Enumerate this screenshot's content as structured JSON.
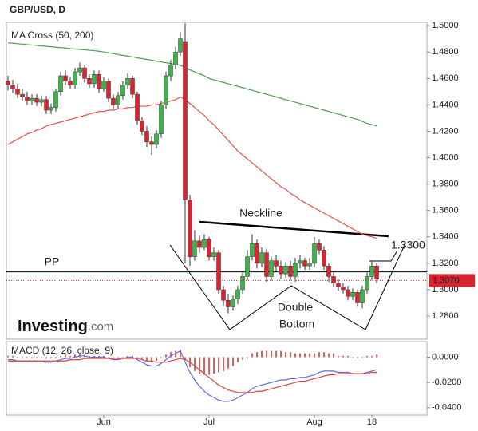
{
  "chart_data": [
    {
      "type": "candlestick",
      "title": "GBP/USD, D",
      "subtitle": "MA Cross (50, 200)",
      "categories": [
        null,
        null,
        null,
        null,
        null,
        null,
        null,
        null,
        null,
        null,
        null,
        null,
        null,
        null,
        null,
        null,
        null,
        null,
        null,
        null,
        "Jun",
        null,
        null,
        null,
        null,
        null,
        null,
        null,
        null,
        null,
        null,
        null,
        null,
        null,
        null,
        null,
        null,
        null,
        null,
        null,
        null,
        null,
        "Jul",
        null,
        null,
        null,
        null,
        null,
        null,
        null,
        null,
        null,
        null,
        null,
        null,
        null,
        null,
        null,
        null,
        null,
        null,
        null,
        null,
        null,
        "Aug",
        null,
        null,
        null,
        null,
        null,
        null,
        null,
        null,
        null,
        null,
        null,
        "18",
        null
      ],
      "open": [
        1.458,
        1.455,
        1.452,
        1.448,
        1.446,
        1.443,
        1.445,
        1.442,
        1.444,
        1.436,
        1.438,
        1.45,
        1.462,
        1.458,
        1.455,
        1.465,
        1.468,
        1.46,
        1.456,
        1.463,
        1.452,
        1.458,
        1.445,
        1.44,
        1.447,
        1.455,
        1.46,
        1.448,
        1.428,
        1.42,
        1.412,
        1.41,
        1.418,
        1.44,
        1.462,
        1.47,
        1.48,
        1.488,
        1.368,
        1.325,
        1.337,
        1.332,
        1.338,
        1.325,
        1.328,
        1.3,
        1.292,
        1.287,
        1.293,
        1.3,
        1.31,
        1.325,
        1.335,
        1.32,
        1.328,
        1.31,
        1.322,
        1.318,
        1.312,
        1.318,
        1.31,
        1.32,
        1.322,
        1.318,
        1.32,
        1.335,
        1.33,
        1.318,
        1.31,
        1.305,
        1.302,
        1.3,
        1.295,
        1.298,
        1.29,
        1.3,
        1.31,
        1.318
      ],
      "high": [
        1.462,
        1.459,
        1.456,
        1.452,
        1.45,
        1.448,
        1.448,
        1.447,
        1.447,
        1.441,
        1.452,
        1.465,
        1.466,
        1.461,
        1.468,
        1.472,
        1.47,
        1.463,
        1.466,
        1.466,
        1.461,
        1.46,
        1.448,
        1.45,
        1.458,
        1.464,
        1.462,
        1.45,
        1.431,
        1.424,
        1.416,
        1.421,
        1.443,
        1.465,
        1.474,
        1.484,
        1.495,
        1.502,
        1.372,
        1.345,
        1.341,
        1.342,
        1.34,
        1.332,
        1.33,
        1.303,
        1.297,
        1.296,
        1.303,
        1.313,
        1.33,
        1.342,
        1.338,
        1.332,
        1.331,
        1.325,
        1.326,
        1.322,
        1.321,
        1.322,
        1.324,
        1.326,
        1.324,
        1.324,
        1.34,
        1.338,
        1.333,
        1.32,
        1.313,
        1.308,
        1.305,
        1.303,
        1.301,
        1.3,
        1.303,
        1.313,
        1.322,
        1.32
      ],
      "low": [
        1.451,
        1.449,
        1.445,
        1.443,
        1.44,
        1.44,
        1.439,
        1.439,
        1.433,
        1.433,
        1.435,
        1.447,
        1.455,
        1.452,
        1.452,
        1.462,
        1.457,
        1.453,
        1.453,
        1.449,
        1.45,
        1.442,
        1.437,
        1.437,
        1.444,
        1.452,
        1.445,
        1.425,
        1.417,
        1.408,
        1.402,
        1.407,
        1.415,
        1.437,
        1.458,
        1.467,
        1.477,
        1.32,
        1.318,
        1.322,
        1.328,
        1.33,
        1.322,
        1.322,
        1.297,
        1.288,
        1.282,
        1.284,
        1.289,
        1.297,
        1.307,
        1.322,
        1.316,
        1.317,
        1.306,
        1.307,
        1.314,
        1.308,
        1.309,
        1.307,
        1.306,
        1.316,
        1.315,
        1.315,
        1.317,
        1.327,
        1.315,
        1.306,
        1.302,
        1.299,
        1.297,
        1.292,
        1.292,
        1.287,
        1.286,
        1.297,
        1.307,
        1.305
      ],
      "close": [
        1.455,
        1.452,
        1.448,
        1.446,
        1.443,
        1.445,
        1.442,
        1.444,
        1.436,
        1.438,
        1.45,
        1.462,
        1.458,
        1.455,
        1.465,
        1.468,
        1.46,
        1.456,
        1.463,
        1.452,
        1.458,
        1.445,
        1.44,
        1.447,
        1.455,
        1.46,
        1.448,
        1.428,
        1.42,
        1.412,
        1.41,
        1.418,
        1.44,
        1.462,
        1.47,
        1.48,
        1.49,
        1.368,
        1.325,
        1.337,
        1.332,
        1.338,
        1.325,
        1.328,
        1.3,
        1.292,
        1.287,
        1.293,
        1.3,
        1.31,
        1.325,
        1.335,
        1.32,
        1.328,
        1.31,
        1.322,
        1.318,
        1.312,
        1.318,
        1.31,
        1.32,
        1.322,
        1.318,
        1.32,
        1.335,
        1.33,
        1.318,
        1.31,
        1.305,
        1.302,
        1.3,
        1.295,
        1.298,
        1.29,
        1.3,
        1.31,
        1.318,
        1.308
      ],
      "up_color": "#3cb44b",
      "down_color": "#d9232e",
      "series": [
        {
          "color": "#e8504a",
          "values": [
            1.41,
            1.412,
            1.414,
            1.416,
            1.418,
            1.419,
            1.421,
            1.422,
            1.424,
            1.425,
            1.426,
            1.427,
            1.428,
            1.429,
            1.43,
            1.431,
            1.432,
            1.433,
            1.434,
            1.435,
            1.435,
            1.436,
            1.436,
            1.437,
            1.437,
            1.438,
            1.438,
            1.439,
            1.439,
            1.439,
            1.44,
            1.44,
            1.441,
            1.442,
            1.443,
            1.444,
            1.446,
            1.444,
            1.441,
            1.438,
            1.435,
            1.432,
            1.428,
            1.425,
            1.421,
            1.417,
            1.413,
            1.409,
            1.405,
            1.402,
            1.399,
            1.396,
            1.393,
            1.39,
            1.387,
            1.384,
            1.381,
            1.378,
            1.376,
            1.373,
            1.371,
            1.368,
            1.366,
            1.364,
            1.362,
            1.36,
            1.358,
            1.356,
            1.354,
            1.352,
            1.35,
            1.348,
            1.346,
            1.344,
            1.342,
            1.341,
            1.34,
            1.339
          ]
        },
        {
          "color": "#4c9f50",
          "values": [
            1.487,
            1.4867,
            1.4863,
            1.486,
            1.4856,
            1.4853,
            1.485,
            1.4846,
            1.4843,
            1.484,
            1.4836,
            1.4833,
            1.483,
            1.4826,
            1.4823,
            1.482,
            1.4816,
            1.4813,
            1.481,
            1.4806,
            1.48,
            1.4794,
            1.4788,
            1.4781,
            1.4775,
            1.4769,
            1.4763,
            1.4756,
            1.475,
            1.4744,
            1.4738,
            1.4731,
            1.4725,
            1.4719,
            1.4713,
            1.4706,
            1.47,
            1.468,
            1.4665,
            1.465,
            1.4635,
            1.462,
            1.46,
            1.459,
            1.458,
            1.457,
            1.456,
            1.455,
            1.454,
            1.453,
            1.452,
            1.451,
            1.45,
            1.449,
            1.448,
            1.447,
            1.446,
            1.445,
            1.444,
            1.443,
            1.442,
            1.441,
            1.44,
            1.439,
            1.438,
            1.437,
            1.436,
            1.435,
            1.434,
            1.433,
            1.432,
            1.431,
            1.43,
            1.429,
            1.4275,
            1.426,
            1.425,
            1.424
          ]
        }
      ],
      "ylim": [
        1.2625,
        1.5025
      ],
      "yticks": [
        {
          "value": 1.28,
          "label": "1.2800"
        },
        {
          "value": 1.3,
          "label": "1.3000"
        },
        {
          "value": 1.32,
          "label": "1.3200"
        },
        {
          "value": 1.34,
          "label": "1.3400"
        },
        {
          "value": 1.36,
          "label": "1.3600"
        },
        {
          "value": 1.38,
          "label": "1.3800"
        },
        {
          "value": 1.4,
          "label": "1.4000"
        },
        {
          "value": 1.42,
          "label": "1.4200"
        },
        {
          "value": 1.44,
          "label": "1.4400"
        },
        {
          "value": 1.46,
          "label": "1.4600"
        },
        {
          "value": 1.48,
          "label": "1.4800"
        },
        {
          "value": 1.5,
          "label": "1.5000"
        }
      ],
      "pivot": {
        "label": "PP",
        "value": 1.3135
      },
      "last_price": {
        "value": 1.307,
        "label": "1.3070",
        "color": "#d9232e"
      },
      "annotations": {
        "neckline": "Neckline",
        "target": "1.3300",
        "pattern": [
          "Double",
          "Bottom"
        ]
      }
    },
    {
      "type": "macd",
      "title": "MACD (12, 26, close, 9)",
      "histogram": {
        "color": "#e0605a",
        "values": [
          0.001,
          0.001,
          0,
          0,
          0,
          0,
          0,
          0,
          -0.001,
          -0.001,
          0,
          0.001,
          0.002,
          0.001,
          0.002,
          0.003,
          0.002,
          0.001,
          0.001,
          0.001,
          0.001,
          0,
          -0.001,
          -0.001,
          0,
          0.001,
          0.001,
          -0.001,
          -0.002,
          -0.003,
          -0.004,
          -0.003,
          -0.001,
          0.002,
          0.004,
          0.005,
          0.006,
          -0.002,
          -0.008,
          -0.011,
          -0.013,
          -0.014,
          -0.014,
          -0.013,
          -0.012,
          -0.011,
          -0.009,
          -0.007,
          -0.004,
          -0.002,
          0,
          0.003,
          0.004,
          0.005,
          0.005,
          0.005,
          0.005,
          0.005,
          0.004,
          0.004,
          0.003,
          0.003,
          0.003,
          0.003,
          0.003,
          0.004,
          0.004,
          0.003,
          0.003,
          0.001,
          0.001,
          0.001,
          0,
          0,
          0,
          0.001,
          0.001,
          0.002
        ]
      },
      "series": [
        {
          "color": "#5a6ee0",
          "values": [
            -0.002,
            -0.002,
            -0.003,
            -0.003,
            -0.003,
            -0.003,
            -0.003,
            -0.003,
            -0.004,
            -0.004,
            -0.003,
            -0.002,
            -0.001,
            -0.001,
            0.0,
            0.001,
            0.001,
            0.0,
            0.0,
            0.0,
            0.0,
            -0.001,
            -0.002,
            -0.002,
            -0.001,
            0.0,
            0.0,
            -0.002,
            -0.004,
            -0.006,
            -0.007,
            -0.007,
            -0.005,
            -0.002,
            0.001,
            0.003,
            0.005,
            -0.004,
            -0.012,
            -0.018,
            -0.023,
            -0.027,
            -0.03,
            -0.032,
            -0.034,
            -0.035,
            -0.035,
            -0.034,
            -0.032,
            -0.03,
            -0.028,
            -0.025,
            -0.023,
            -0.022,
            -0.021,
            -0.02,
            -0.019,
            -0.018,
            -0.018,
            -0.017,
            -0.017,
            -0.016,
            -0.016,
            -0.015,
            -0.014,
            -0.012,
            -0.011,
            -0.011,
            -0.011,
            -0.012,
            -0.012,
            -0.012,
            -0.013,
            -0.013,
            -0.013,
            -0.012,
            -0.011,
            -0.01
          ]
        },
        {
          "color": "#e0403a",
          "values": [
            -0.003,
            -0.003,
            -0.003,
            -0.003,
            -0.003,
            -0.003,
            -0.003,
            -0.003,
            -0.003,
            -0.003,
            -0.003,
            -0.003,
            -0.003,
            -0.002,
            -0.002,
            -0.002,
            -0.001,
            -0.001,
            -0.001,
            -0.001,
            -0.001,
            -0.001,
            -0.001,
            -0.001,
            -0.001,
            -0.001,
            -0.001,
            -0.001,
            -0.002,
            -0.003,
            -0.003,
            -0.004,
            -0.004,
            -0.004,
            -0.003,
            -0.002,
            -0.001,
            -0.002,
            -0.004,
            -0.007,
            -0.01,
            -0.013,
            -0.016,
            -0.019,
            -0.022,
            -0.024,
            -0.026,
            -0.027,
            -0.028,
            -0.028,
            -0.028,
            -0.028,
            -0.027,
            -0.027,
            -0.026,
            -0.025,
            -0.024,
            -0.023,
            -0.022,
            -0.021,
            -0.02,
            -0.019,
            -0.019,
            -0.018,
            -0.017,
            -0.016,
            -0.015,
            -0.014,
            -0.014,
            -0.013,
            -0.013,
            -0.013,
            -0.013,
            -0.013,
            -0.013,
            -0.013,
            -0.012,
            -0.012
          ]
        }
      ],
      "ylim": [
        -0.0458,
        0.0123
      ],
      "yticks": [
        {
          "value": -0.04,
          "label": "-0.0400"
        },
        {
          "value": -0.02,
          "label": "-0.0200"
        },
        {
          "value": 0,
          "label": "0.0000"
        }
      ]
    }
  ],
  "logo": {
    "name": "Investing",
    "suffix": ".com"
  }
}
